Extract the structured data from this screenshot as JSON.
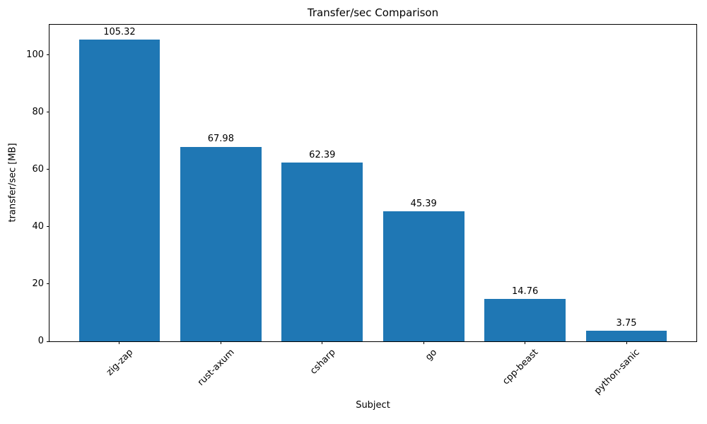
{
  "chart_data": {
    "type": "bar",
    "title": "Transfer/sec Comparison",
    "xlabel": "Subject",
    "ylabel": "transfer/sec [MB]",
    "categories": [
      "zig-zap",
      "rust-axum",
      "csharp",
      "go",
      "cpp-beast",
      "python-sanic"
    ],
    "values": [
      105.32,
      67.98,
      62.39,
      45.39,
      14.76,
      3.75
    ],
    "bar_labels": [
      "105.32",
      "67.98",
      "62.39",
      "45.39",
      "14.76",
      "3.75"
    ],
    "yticks": [
      0,
      20,
      40,
      60,
      80,
      100
    ],
    "ylim": [
      0,
      110.6
    ],
    "xlim_units": [
      -0.69,
      5.69
    ],
    "bar_width_units": 0.8,
    "bar_color": "#1f77b4",
    "axis_color": "#000000",
    "text_color": "#000000",
    "grid": false,
    "legend": "none",
    "xtick_label_rotation_deg": 45
  }
}
